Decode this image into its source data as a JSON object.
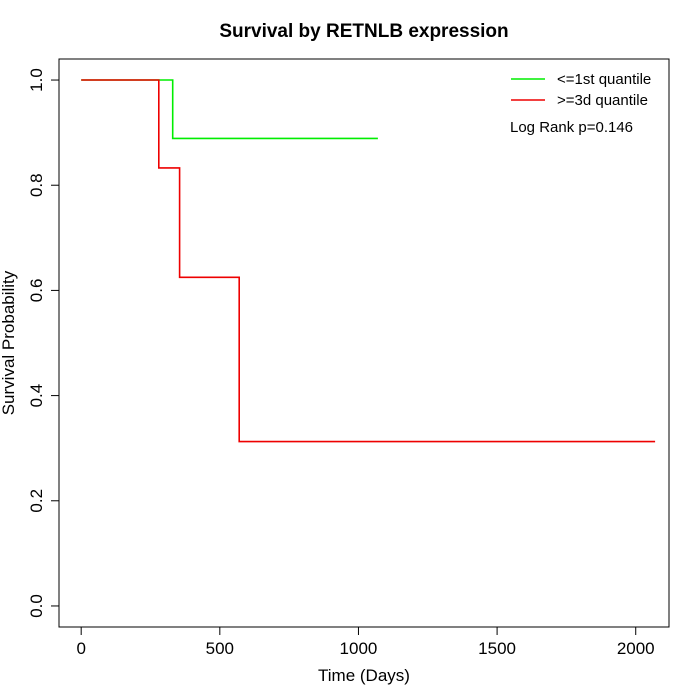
{
  "chart_data": {
    "type": "line",
    "subtype": "kaplan-meier-step",
    "title": "Survival by RETNLB expression",
    "xlabel": "Time (Days)",
    "ylabel": "Survival Probability",
    "xlim": [
      -80,
      2120
    ],
    "ylim": [
      -0.04,
      1.04
    ],
    "x_ticks": [
      0,
      500,
      1000,
      1500,
      2000
    ],
    "y_ticks": [
      0.0,
      0.2,
      0.4,
      0.6,
      0.8,
      1.0
    ],
    "x_tick_labels": [
      "0",
      "500",
      "1000",
      "1500",
      "2000"
    ],
    "y_tick_labels": [
      "0.0",
      "0.2",
      "0.4",
      "0.6",
      "0.8",
      "1.0"
    ],
    "grid": false,
    "legend_position": "top-right",
    "series": [
      {
        "name": "<=1st quantile",
        "color": "#00ee00",
        "x": [
          0,
          330,
          330,
          1070
        ],
        "y": [
          1.0,
          1.0,
          0.889,
          0.889
        ]
      },
      {
        "name": ">=3d quantile",
        "color": "#ee0000",
        "x": [
          0,
          280,
          280,
          355,
          355,
          570,
          570,
          2070
        ],
        "y": [
          1.0,
          1.0,
          0.833,
          0.833,
          0.625,
          0.625,
          0.3125,
          0.3125
        ]
      }
    ],
    "annotation": "Log Rank p=0.146"
  }
}
